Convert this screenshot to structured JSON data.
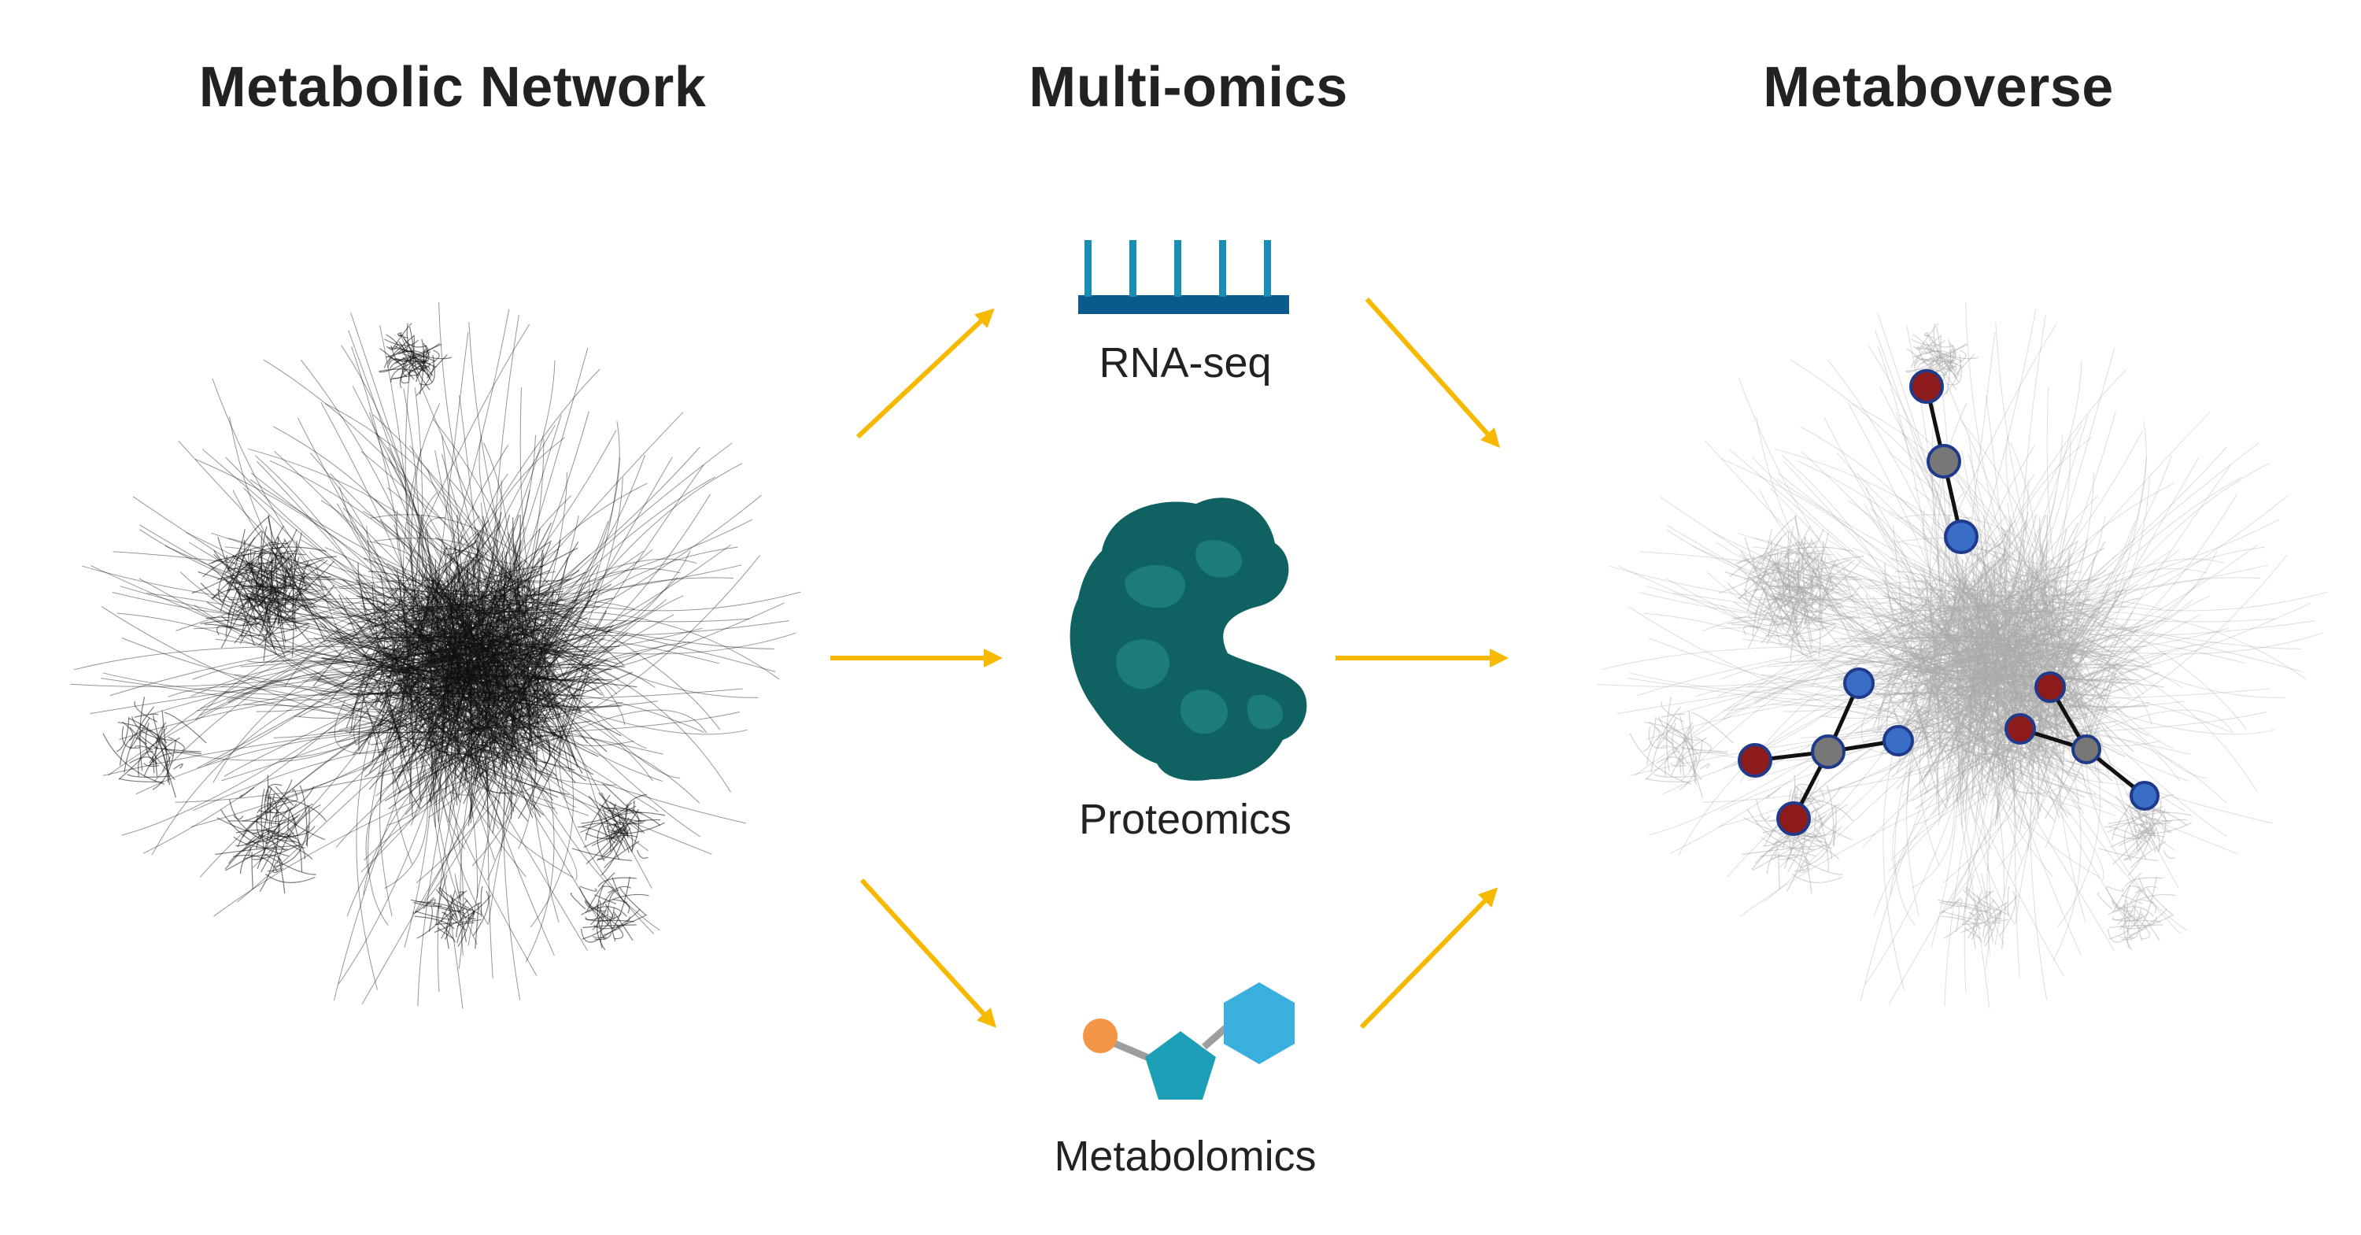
{
  "headings": {
    "left": "Metabolic Network",
    "center": "Multi-omics",
    "right": "Metaboverse"
  },
  "omics": {
    "rnaseq": "RNA-seq",
    "proteomics": "Proteomics",
    "metabolomics": "Metabolomics"
  },
  "colors": {
    "arrow": "#F7B800",
    "network_dark": "#111111",
    "network_light": "#A9A9A9",
    "rnaseq_bar": "#1A8DB5",
    "rnaseq_base": "#0B5A8C",
    "protein": "#0F6162",
    "protein_light": "#1C7C7C",
    "metab_circle": "#F29545",
    "metab_pentagon": "#1E9FB8",
    "metab_hexagon": "#3AB0DE",
    "node_red": "#8E1B1B",
    "node_gray": "#777777",
    "node_blue": "#3A6EC6",
    "node_stroke": "#1F3A8A"
  }
}
